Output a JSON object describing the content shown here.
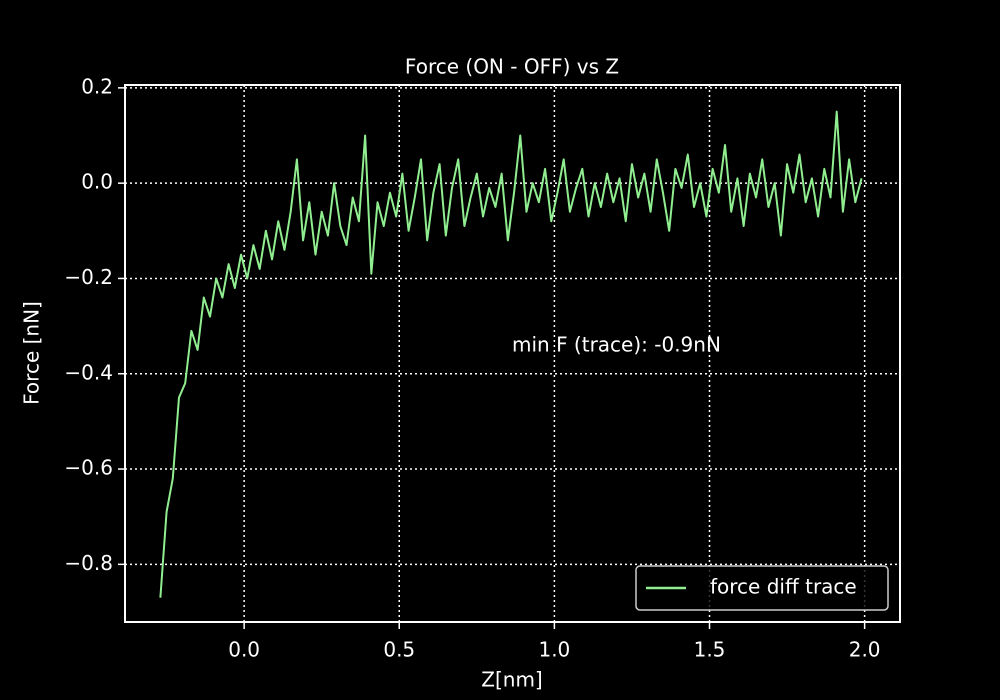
{
  "chart_data": {
    "type": "line",
    "title": "Force (ON - OFF) vs Z",
    "x_label": "Z[nm]",
    "y_label": "Force [nN]",
    "annotation": "min F (trace): -0.9nN",
    "legend_position": "lower right",
    "grid": true,
    "xlim": [
      -0.384,
      2.114
    ],
    "ylim": [
      -0.921,
      0.206
    ],
    "xticks": [
      {
        "value": 0,
        "label": "0.0"
      },
      {
        "value": 0.5,
        "label": "0.5"
      },
      {
        "value": 1,
        "label": "1.0"
      },
      {
        "value": 1.5,
        "label": "1.5"
      },
      {
        "value": 2,
        "label": "2.0"
      }
    ],
    "yticks": [
      {
        "value": 0.2,
        "label": "0.2"
      },
      {
        "value": 0,
        "label": "0.0"
      },
      {
        "value": -0.2,
        "label": "−0.2"
      },
      {
        "value": -0.4,
        "label": "−0.4"
      },
      {
        "value": -0.6,
        "label": "−0.6"
      },
      {
        "value": -0.8,
        "label": "−0.8"
      }
    ],
    "x": [
      -0.27,
      -0.25,
      -0.23,
      -0.21,
      -0.19,
      -0.17,
      -0.15,
      -0.13,
      -0.11,
      -0.09,
      -0.07,
      -0.05,
      -0.03,
      -0.01,
      0.01,
      0.03,
      0.05,
      0.07,
      0.09,
      0.11,
      0.13,
      0.15,
      0.17,
      0.19,
      0.21,
      0.23,
      0.25,
      0.27,
      0.29,
      0.31,
      0.33,
      0.35,
      0.37,
      0.39,
      0.41,
      0.43,
      0.45,
      0.47,
      0.49,
      0.51,
      0.53,
      0.55,
      0.57,
      0.59,
      0.61,
      0.63,
      0.65,
      0.67,
      0.69,
      0.71,
      0.73,
      0.75,
      0.77,
      0.79,
      0.81,
      0.83,
      0.85,
      0.87,
      0.89,
      0.91,
      0.93,
      0.95,
      0.97,
      0.99,
      1.01,
      1.03,
      1.05,
      1.07,
      1.09,
      1.11,
      1.13,
      1.15,
      1.17,
      1.19,
      1.21,
      1.23,
      1.25,
      1.27,
      1.29,
      1.31,
      1.33,
      1.35,
      1.37,
      1.39,
      1.41,
      1.43,
      1.45,
      1.47,
      1.49,
      1.51,
      1.53,
      1.55,
      1.57,
      1.59,
      1.61,
      1.63,
      1.65,
      1.67,
      1.69,
      1.71,
      1.73,
      1.75,
      1.77,
      1.79,
      1.81,
      1.83,
      1.85,
      1.87,
      1.89,
      1.91,
      1.93,
      1.95,
      1.97,
      1.99
    ],
    "series": [
      {
        "name": "force diff trace",
        "color": "#90ee90",
        "values": [
          -0.87,
          -0.69,
          -0.62,
          -0.45,
          -0.42,
          -0.31,
          -0.35,
          -0.24,
          -0.28,
          -0.2,
          -0.24,
          -0.17,
          -0.22,
          -0.15,
          -0.2,
          -0.13,
          -0.18,
          -0.1,
          -0.16,
          -0.08,
          -0.14,
          -0.06,
          0.05,
          -0.12,
          -0.04,
          -0.15,
          -0.06,
          -0.11,
          0.0,
          -0.09,
          -0.13,
          -0.03,
          -0.08,
          0.1,
          -0.19,
          -0.04,
          -0.09,
          -0.02,
          -0.07,
          0.02,
          -0.1,
          -0.03,
          0.05,
          -0.12,
          -0.02,
          0.04,
          -0.11,
          -0.01,
          0.05,
          -0.09,
          -0.03,
          0.02,
          -0.07,
          -0.01,
          -0.05,
          0.02,
          -0.12,
          -0.02,
          0.1,
          -0.06,
          0.0,
          -0.04,
          0.03,
          -0.08,
          -0.02,
          0.05,
          -0.06,
          -0.01,
          0.03,
          -0.07,
          0.0,
          -0.05,
          0.02,
          -0.04,
          0.01,
          -0.08,
          0.04,
          -0.03,
          0.02,
          -0.06,
          0.05,
          -0.02,
          -0.1,
          0.03,
          -0.01,
          0.06,
          -0.05,
          0.0,
          -0.07,
          0.03,
          -0.02,
          0.08,
          -0.06,
          0.01,
          -0.09,
          0.02,
          -0.03,
          0.05,
          -0.05,
          0.0,
          -0.11,
          0.04,
          -0.02,
          0.06,
          -0.04,
          0.01,
          -0.07,
          0.03,
          -0.03,
          0.15,
          -0.06,
          0.05,
          -0.04,
          0.01
        ]
      }
    ]
  }
}
